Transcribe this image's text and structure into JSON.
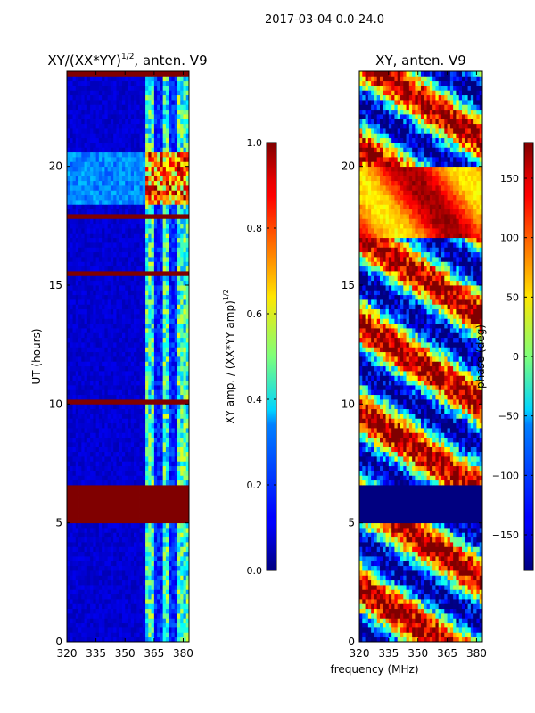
{
  "figure": {
    "suptitle": "2017-03-04 0.0-24.0",
    "shared_xlabel": "frequency (MHz)"
  },
  "chart_data": [
    {
      "type": "heatmap",
      "title": "XY/(XX*YY)^(1/2), anten. V9",
      "title_main": "XY/(XX*YY)",
      "title_sup": "1/2",
      "title_rest": ", anten. V9",
      "xlabel": "frequency (MHz)",
      "ylabel": "UT (hours)",
      "xlim": [
        320,
        383
      ],
      "ylim": [
        0,
        24
      ],
      "xticks": [
        320,
        335,
        350,
        365,
        380
      ],
      "yticks": [
        0,
        5,
        10,
        15,
        20
      ],
      "colormap": "jet",
      "colorbar": {
        "label": "XY amp. / (XX*YY amp)^(1/2)",
        "label_main": "XY amp. / (XX*YY amp)",
        "label_sup": "1/2",
        "range": [
          0.0,
          1.0
        ],
        "ticks": [
          "0.0",
          "0.2",
          "0.4",
          "0.6",
          "0.8",
          "1.0"
        ],
        "tick_values": [
          0.0,
          0.2,
          0.4,
          0.6,
          0.8,
          1.0
        ]
      },
      "features": {
        "background_value": 0.05,
        "rfi_band_mhz": [
          360,
          383
        ],
        "saturated_hours": [
          [
            5.0,
            6.6
          ],
          [
            10.0,
            10.2
          ],
          [
            23.9,
            24.0
          ],
          [
            17.8,
            17.9
          ],
          [
            15.5,
            15.6
          ]
        ],
        "elevated_hours": [
          [
            18.5,
            20.6
          ]
        ]
      }
    },
    {
      "type": "heatmap",
      "title": "XY, anten. V9",
      "xlabel": "frequency (MHz)",
      "ylabel": "",
      "xlim": [
        320,
        383
      ],
      "ylim": [
        0,
        24
      ],
      "xticks": [
        320,
        335,
        350,
        365,
        380
      ],
      "yticks": [
        0,
        5,
        10,
        15,
        20
      ],
      "colormap": "jet",
      "colorbar": {
        "label": "phase (deg)",
        "range": [
          -180,
          180
        ],
        "ticks": [
          "150",
          "100",
          "50",
          "0",
          "−50",
          "−100",
          "−150"
        ],
        "tick_values": [
          150,
          100,
          50,
          0,
          -50,
          -100,
          -150
        ]
      },
      "features": {
        "blank_hours": [
          [
            5.0,
            6.6
          ]
        ],
        "coherent_hours": [
          [
            17.0,
            20.0
          ]
        ]
      }
    }
  ],
  "colors": {
    "jet_dark_blue": "#00007f",
    "jet_dark_red": "#7f0000"
  }
}
